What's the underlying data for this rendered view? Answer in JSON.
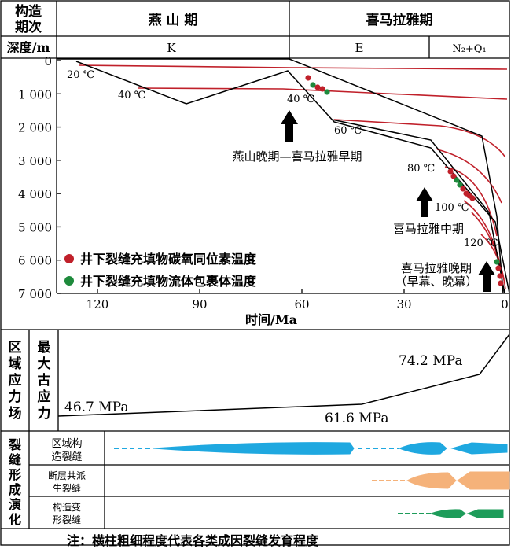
{
  "header": {
    "stage_label_line1": "构造",
    "stage_label_line2": "期次",
    "period_yanshan": "燕 山 期",
    "period_himalaya": "喜马拉雅期",
    "depth_label": "深度/m",
    "epoch_k": "K",
    "epoch_e": "E",
    "epoch_nq": "N₂+Q₁"
  },
  "burial_chart": {
    "y_ticks": [
      "0",
      "1 000",
      "2 000",
      "3 000",
      "4 000",
      "5 000",
      "6 000",
      "7 000"
    ],
    "x_ticks": [
      "120",
      "90",
      "60",
      "30",
      "0"
    ],
    "x_axis_label": "时间/Ma",
    "isotherm_labels": [
      "20 ℃",
      "40 ℃",
      "40 ℃",
      "60 ℃",
      "80 ℃",
      "100 ℃",
      "120 ℃"
    ],
    "events": {
      "late_yanshan": "燕山晚期—喜马拉雅早期",
      "middle_himalaya": "喜马拉雅中期",
      "late_himalaya": "喜马拉雅晚期",
      "late_himalaya_sub": "（早幕、晚幕）"
    },
    "legend": [
      {
        "label": "井下裂缝充填物碳氧同位素温度",
        "color": "#c0202a"
      },
      {
        "label": "井下裂缝充填物流体包裹体温度",
        "color": "#1e8a3c"
      }
    ],
    "colors": {
      "isotherm": "#c0202a",
      "burial": "#000000"
    }
  },
  "stress": {
    "label_col1": [
      "区",
      "域",
      "应",
      "力",
      "场"
    ],
    "label_col2": [
      "最",
      "大",
      "古",
      "应",
      "力"
    ],
    "values": [
      "46.7 MPa",
      "61.6 MPa",
      "74.2 MPa"
    ]
  },
  "fractures": {
    "section_label": [
      "裂",
      "缝",
      "形",
      "成",
      "演",
      "化"
    ],
    "rows": [
      {
        "label_line1": "区域构",
        "label_line2": "造裂缝",
        "color": "#1fa8e0"
      },
      {
        "label_line1": "断层共派",
        "label_line2": "生裂缝",
        "color": "#f5b27a"
      },
      {
        "label_line1": "构造变",
        "label_line2": "形裂缝",
        "color": "#1e9c5a"
      }
    ]
  },
  "note": "注：横柱粗细程度代表各类成因裂缝发育程度"
}
